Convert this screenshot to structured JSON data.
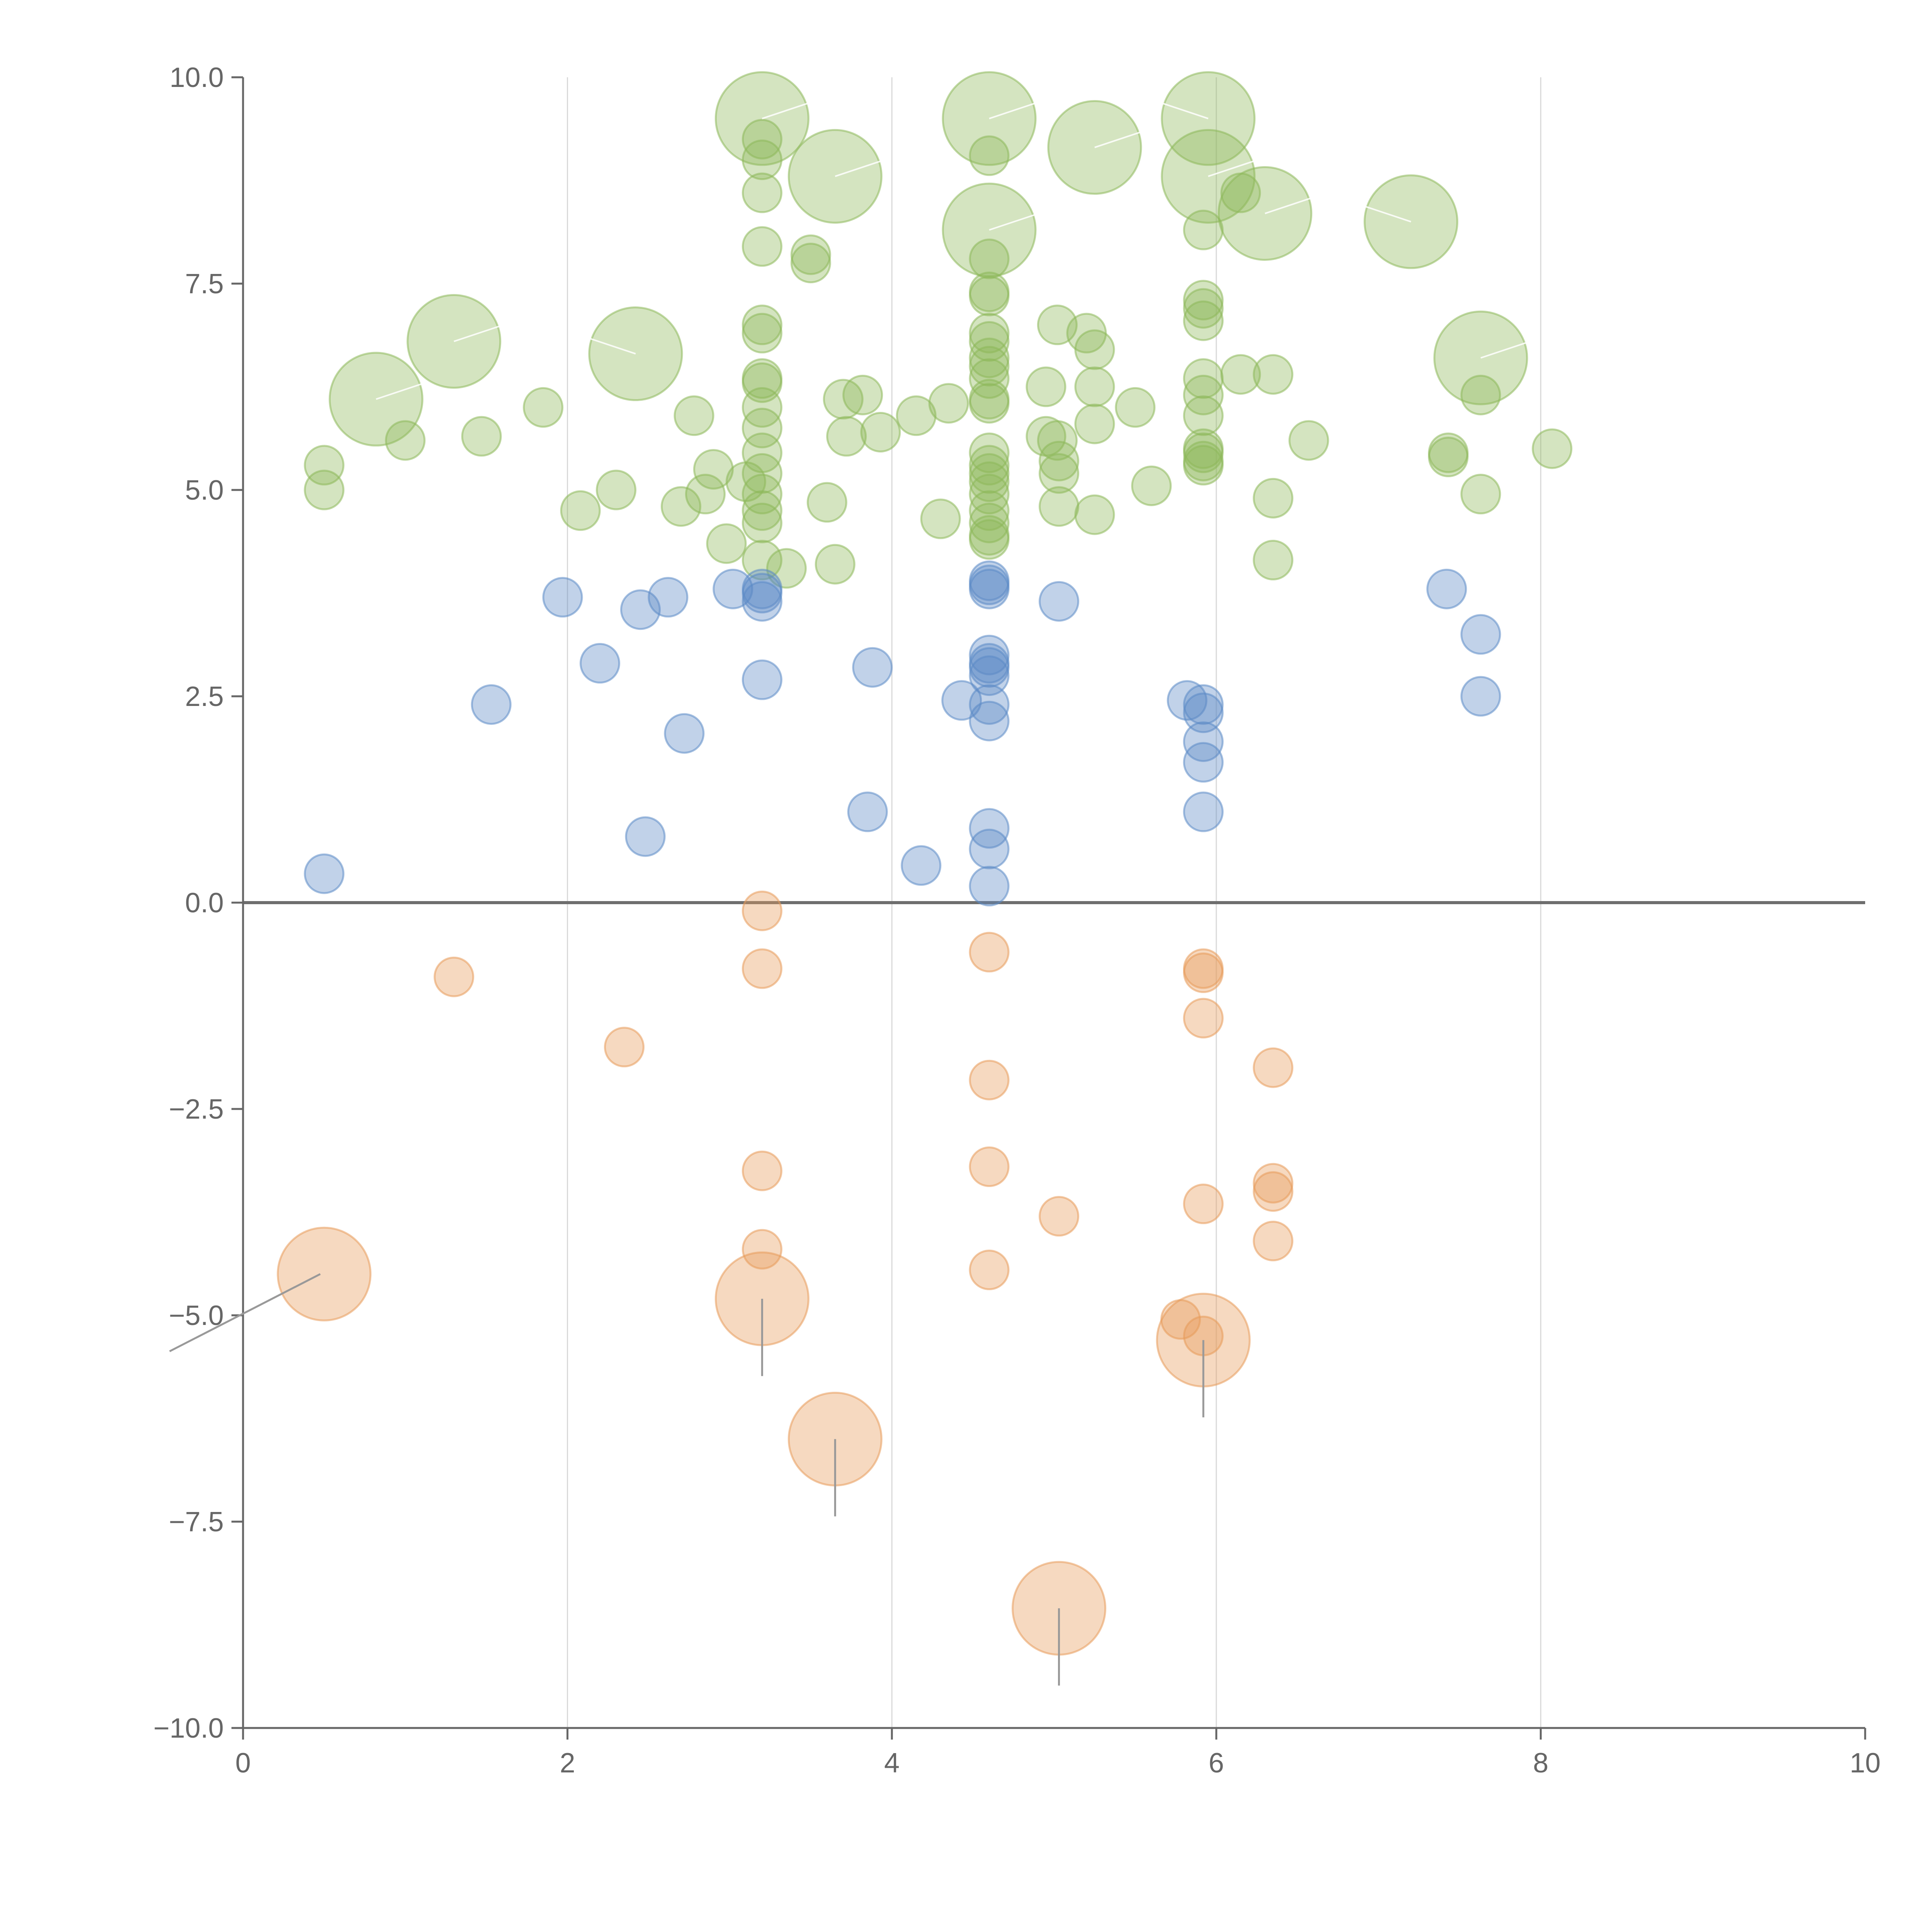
{
  "chart_data": {
    "type": "scatter",
    "title": "",
    "xlabel": "",
    "ylabel": "",
    "xlim": [
      0,
      10
    ],
    "ylim": [
      -10,
      10
    ],
    "xticks": [
      "0",
      "2",
      "4",
      "6",
      "8",
      "10"
    ],
    "yticks": [
      "10.0",
      "7.5",
      "5.0",
      "2.5",
      "0.0",
      "−2.5",
      "−5.0",
      "−7.5",
      "−10.0"
    ],
    "grid": "vertical",
    "zero_line": true,
    "colors": {
      "green": "#8db85a",
      "blue": "#5b8ac6",
      "orange": "#e89a5a",
      "grid": "#d9d9d9",
      "axis": "#666666"
    },
    "series": [
      {
        "color": "green",
        "points": [
          [
            0.5,
            5.3,
            1
          ],
          [
            0.5,
            5.0,
            1
          ],
          [
            0.82,
            6.1,
            2.4
          ],
          [
            1.0,
            5.6,
            1
          ],
          [
            1.3,
            6.8,
            2.4
          ],
          [
            1.47,
            5.65,
            1
          ],
          [
            1.85,
            6.0,
            1
          ],
          [
            2.08,
            4.75,
            1
          ],
          [
            2.3,
            5.0,
            1
          ],
          [
            2.42,
            6.65,
            2.4
          ],
          [
            2.7,
            4.8,
            1
          ],
          [
            2.78,
            5.9,
            1
          ],
          [
            2.85,
            4.95,
            1
          ],
          [
            2.9,
            5.25,
            1
          ],
          [
            2.98,
            4.35,
            1
          ],
          [
            3.1,
            5.1,
            1
          ],
          [
            3.2,
            9.5,
            2.4
          ],
          [
            3.2,
            9.25,
            1
          ],
          [
            3.2,
            9.0,
            1
          ],
          [
            3.2,
            8.6,
            1
          ],
          [
            3.2,
            7.95,
            1
          ],
          [
            3.2,
            7.0,
            1
          ],
          [
            3.2,
            6.9,
            1
          ],
          [
            3.2,
            6.35,
            1
          ],
          [
            3.2,
            6.3,
            1
          ],
          [
            3.2,
            6.0,
            1
          ],
          [
            3.2,
            5.75,
            1
          ],
          [
            3.2,
            5.45,
            1
          ],
          [
            3.2,
            5.2,
            1
          ],
          [
            3.2,
            4.95,
            1
          ],
          [
            3.2,
            4.75,
            1
          ],
          [
            3.2,
            4.6,
            1
          ],
          [
            3.2,
            4.15,
            1
          ],
          [
            3.35,
            4.05,
            1
          ],
          [
            3.5,
            7.85,
            1
          ],
          [
            3.5,
            7.75,
            1
          ],
          [
            3.6,
            4.85,
            1
          ],
          [
            3.65,
            4.1,
            1
          ],
          [
            3.65,
            8.8,
            2.4
          ],
          [
            3.7,
            6.1,
            1
          ],
          [
            3.72,
            5.65,
            1
          ],
          [
            3.82,
            6.15,
            1
          ],
          [
            3.93,
            5.7,
            1
          ],
          [
            4.15,
            5.9,
            1
          ],
          [
            4.3,
            4.65,
            1
          ],
          [
            4.35,
            6.05,
            1
          ],
          [
            4.6,
            9.5,
            2.4
          ],
          [
            4.6,
            9.05,
            1
          ],
          [
            4.6,
            8.15,
            2.4
          ],
          [
            4.6,
            7.8,
            1
          ],
          [
            4.6,
            7.4,
            1
          ],
          [
            4.6,
            7.35,
            1
          ],
          [
            4.6,
            6.9,
            1
          ],
          [
            4.6,
            6.8,
            1
          ],
          [
            4.6,
            6.6,
            1
          ],
          [
            4.6,
            6.5,
            1
          ],
          [
            4.6,
            6.35,
            1
          ],
          [
            4.6,
            6.1,
            1
          ],
          [
            4.6,
            6.05,
            1
          ],
          [
            4.6,
            5.45,
            1
          ],
          [
            4.6,
            5.3,
            1
          ],
          [
            4.6,
            5.2,
            1
          ],
          [
            4.6,
            5.1,
            1
          ],
          [
            4.6,
            4.95,
            1
          ],
          [
            4.6,
            4.75,
            1
          ],
          [
            4.6,
            4.6,
            1
          ],
          [
            4.6,
            4.45,
            1
          ],
          [
            4.6,
            4.4,
            1
          ],
          [
            4.95,
            6.25,
            1
          ],
          [
            4.95,
            5.65,
            1
          ],
          [
            5.02,
            5.6,
            1
          ],
          [
            5.02,
            7.0,
            1
          ],
          [
            5.03,
            5.35,
            1
          ],
          [
            5.03,
            5.2,
            1
          ],
          [
            5.03,
            4.8,
            1
          ],
          [
            5.2,
            6.9,
            1
          ],
          [
            5.25,
            6.7,
            1
          ],
          [
            5.25,
            6.25,
            1
          ],
          [
            5.25,
            5.8,
            1
          ],
          [
            5.25,
            4.7,
            1
          ],
          [
            5.25,
            9.15,
            2.4
          ],
          [
            5.5,
            6.0,
            1
          ],
          [
            5.6,
            5.05,
            1
          ],
          [
            5.95,
            9.5,
            2.4
          ],
          [
            5.95,
            8.8,
            2.4
          ],
          [
            5.92,
            8.15,
            1
          ],
          [
            5.92,
            7.3,
            1
          ],
          [
            5.92,
            7.2,
            1
          ],
          [
            5.92,
            7.05,
            1
          ],
          [
            5.92,
            6.35,
            1
          ],
          [
            5.92,
            6.15,
            1
          ],
          [
            5.92,
            5.9,
            1
          ],
          [
            5.92,
            5.5,
            1
          ],
          [
            5.92,
            5.45,
            1
          ],
          [
            5.92,
            5.35,
            1
          ],
          [
            5.92,
            5.3,
            1
          ],
          [
            6.15,
            8.6,
            1
          ],
          [
            6.15,
            6.4,
            1
          ],
          [
            6.3,
            8.35,
            2.4
          ],
          [
            6.35,
            6.4,
            1
          ],
          [
            6.35,
            4.9,
            1
          ],
          [
            6.35,
            4.15,
            1
          ],
          [
            6.57,
            5.6,
            1
          ],
          [
            7.2,
            8.25,
            2.4
          ],
          [
            7.43,
            5.45,
            1
          ],
          [
            7.43,
            5.4,
            1
          ],
          [
            7.63,
            6.6,
            2.4
          ],
          [
            7.63,
            6.15,
            1
          ],
          [
            7.63,
            4.95,
            1
          ],
          [
            8.07,
            5.5,
            1
          ]
        ]
      },
      {
        "color": "blue",
        "points": [
          [
            0.5,
            0.35,
            1
          ],
          [
            1.53,
            2.4,
            1
          ],
          [
            1.97,
            3.7,
            1
          ],
          [
            2.2,
            2.9,
            1
          ],
          [
            2.45,
            3.55,
            1
          ],
          [
            2.48,
            0.8,
            1
          ],
          [
            2.62,
            3.7,
            1
          ],
          [
            2.72,
            2.05,
            1
          ],
          [
            3.02,
            3.8,
            1
          ],
          [
            3.2,
            3.8,
            1
          ],
          [
            3.2,
            3.75,
            1
          ],
          [
            3.2,
            3.65,
            1
          ],
          [
            3.2,
            2.7,
            1
          ],
          [
            3.85,
            1.1,
            1
          ],
          [
            3.88,
            2.85,
            1
          ],
          [
            4.18,
            0.45,
            1
          ],
          [
            4.43,
            2.45,
            1
          ],
          [
            4.6,
            3.9,
            1
          ],
          [
            4.6,
            3.85,
            1
          ],
          [
            4.6,
            3.8,
            1
          ],
          [
            4.6,
            3.0,
            1
          ],
          [
            4.6,
            2.9,
            1
          ],
          [
            4.6,
            2.85,
            1
          ],
          [
            4.6,
            2.75,
            1
          ],
          [
            4.6,
            2.4,
            1
          ],
          [
            4.6,
            2.2,
            1
          ],
          [
            4.6,
            0.9,
            1
          ],
          [
            4.6,
            0.65,
            1
          ],
          [
            4.6,
            0.2,
            1
          ],
          [
            5.03,
            3.65,
            1
          ],
          [
            5.82,
            2.45,
            1
          ],
          [
            5.92,
            2.4,
            1
          ],
          [
            5.92,
            2.3,
            1
          ],
          [
            5.92,
            1.95,
            1
          ],
          [
            5.92,
            1.7,
            1
          ],
          [
            5.92,
            1.1,
            1
          ],
          [
            7.42,
            3.8,
            1
          ],
          [
            7.63,
            3.25,
            1
          ],
          [
            7.63,
            2.5,
            1
          ]
        ]
      },
      {
        "color": "orange",
        "points": [
          [
            0.5,
            -4.5,
            2.4
          ],
          [
            1.3,
            -0.9,
            1
          ],
          [
            2.35,
            -1.75,
            1
          ],
          [
            3.2,
            -0.1,
            1
          ],
          [
            3.2,
            -0.8,
            1
          ],
          [
            3.2,
            -3.25,
            1
          ],
          [
            3.2,
            -4.2,
            1
          ],
          [
            3.2,
            -4.8,
            2.4
          ],
          [
            3.65,
            -6.5,
            2.4
          ],
          [
            4.6,
            -0.6,
            1
          ],
          [
            4.6,
            -2.15,
            1
          ],
          [
            4.6,
            -3.2,
            1
          ],
          [
            4.6,
            -4.45,
            1
          ],
          [
            5.03,
            -3.8,
            1
          ],
          [
            5.03,
            -8.55,
            2.4
          ],
          [
            5.78,
            -5.05,
            1
          ],
          [
            5.92,
            -0.85,
            1
          ],
          [
            5.92,
            -0.8,
            1
          ],
          [
            5.92,
            -1.4,
            1
          ],
          [
            5.92,
            -3.65,
            1
          ],
          [
            5.92,
            -5.25,
            1
          ],
          [
            5.92,
            -5.3,
            2.4
          ],
          [
            6.35,
            -2.0,
            1
          ],
          [
            6.35,
            -3.4,
            1
          ],
          [
            6.35,
            -3.5,
            1
          ],
          [
            6.35,
            -4.1,
            1
          ]
        ]
      }
    ]
  }
}
